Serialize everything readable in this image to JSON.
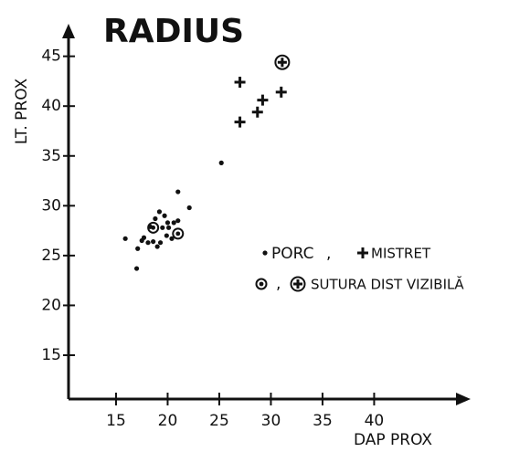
{
  "chart_data": {
    "type": "scatter",
    "title": "RADIUS",
    "x_label": "DAP PROX",
    "y_label": "LT. PROX",
    "xlim": [
      10.4,
      48.9
    ],
    "ylim": [
      10.6,
      47.9
    ],
    "xticks": [
      15,
      20,
      25,
      30,
      35,
      40
    ],
    "yticks": [
      15,
      20,
      25,
      30,
      35,
      40,
      45
    ],
    "legend_separator": ",",
    "series": [
      {
        "name": "PORC",
        "color": "#111",
        "marker": "dot",
        "x": [
          15.9,
          17.0,
          17.1,
          17.5,
          17.7,
          18.1,
          18.6,
          19.0,
          19.3,
          18.3,
          18.8,
          19.2,
          19.7,
          20.0,
          20.1,
          19.5,
          20.6,
          21.0,
          21.0,
          22.1,
          19.9,
          20.4,
          25.2
        ],
        "values": [
          26.7,
          23.7,
          25.7,
          26.5,
          26.8,
          26.3,
          26.4,
          25.9,
          26.3,
          27.9,
          28.7,
          29.4,
          29.0,
          28.3,
          27.8,
          27.8,
          28.3,
          28.5,
          31.4,
          29.8,
          27.0,
          26.7,
          34.3
        ]
      },
      {
        "name": "MISTRET",
        "color": "#111",
        "marker": "plus",
        "x": [
          27.0,
          27.0,
          28.7,
          29.2,
          31.0
        ],
        "values": [
          42.4,
          38.4,
          39.4,
          40.6,
          41.4
        ]
      },
      {
        "name": "SUTURA DIST VIZIBILĂ",
        "color": "#111",
        "markers": [
          "circle-dot",
          "circle-dot",
          "circle-plus"
        ],
        "x": [
          18.6,
          21.0,
          31.1
        ],
        "values": [
          27.8,
          27.2,
          44.4
        ]
      }
    ]
  }
}
